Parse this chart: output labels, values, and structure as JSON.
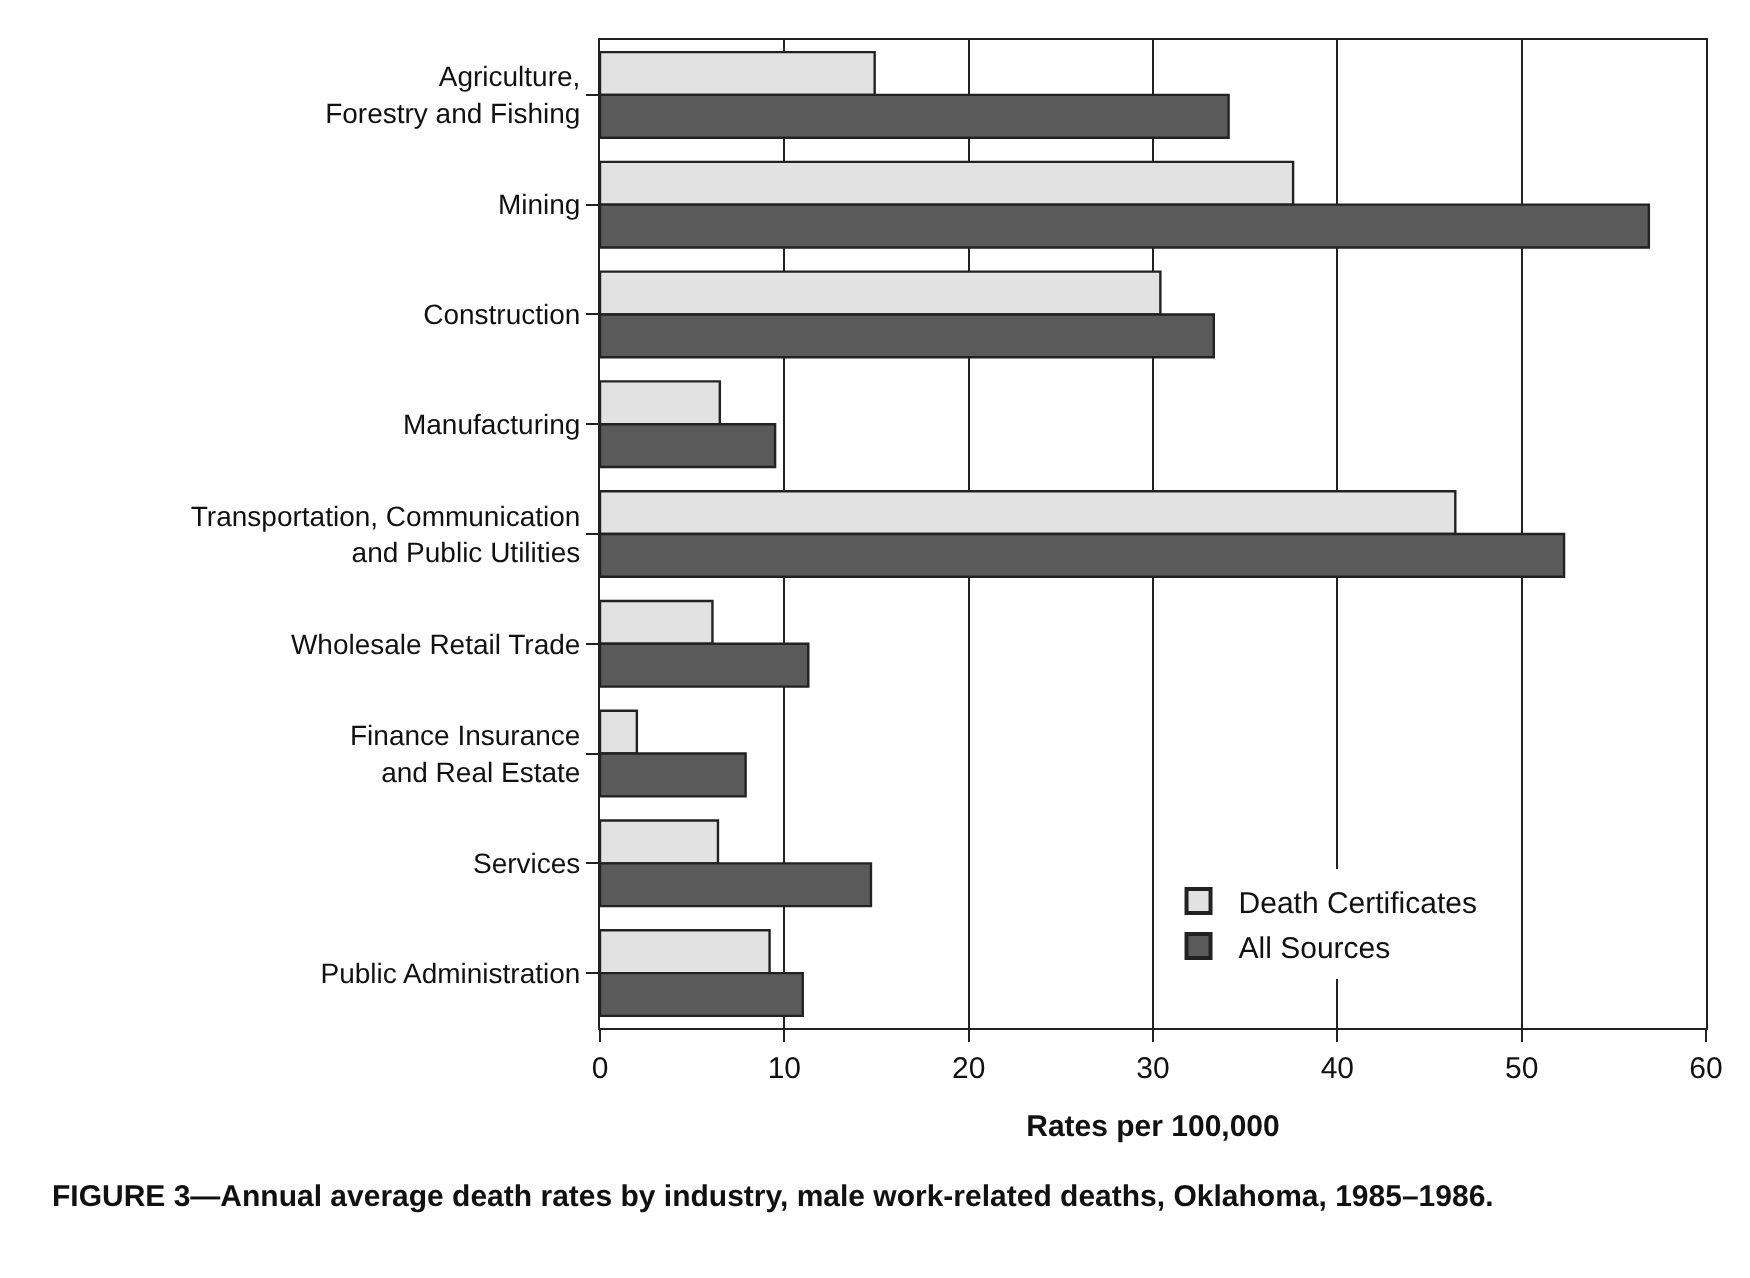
{
  "chart_data": {
    "type": "bar",
    "orientation": "horizontal",
    "categories": [
      "Agriculture,\nForestry and Fishing",
      "Mining",
      "Construction",
      "Manufacturing",
      "Transportation, Communication\nand Public Utilities",
      "Wholesale Retail Trade",
      "Finance Insurance\nand Real Estate",
      "Services",
      "Public Administration"
    ],
    "series": [
      {
        "name": "Death Certificates",
        "color": "#e2e2e2",
        "values": [
          14.9,
          37.6,
          30.4,
          6.5,
          46.4,
          6.1,
          2.0,
          6.4,
          9.2
        ]
      },
      {
        "name": "All Sources",
        "color": "#5a5a5a",
        "values": [
          34.1,
          56.9,
          33.3,
          9.5,
          52.3,
          11.3,
          7.9,
          14.7,
          11.0
        ]
      }
    ],
    "xlabel": "Rates per 100,000",
    "xlim": [
      0,
      60
    ],
    "xticks": [
      0,
      10,
      20,
      30,
      40,
      50,
      60
    ],
    "grid": "x",
    "legend": "bottom right",
    "annotations": [
      "FIGURE 3—Annual average death rates by industry, male work-related deaths, Oklahoma, 1985–1986."
    ]
  }
}
